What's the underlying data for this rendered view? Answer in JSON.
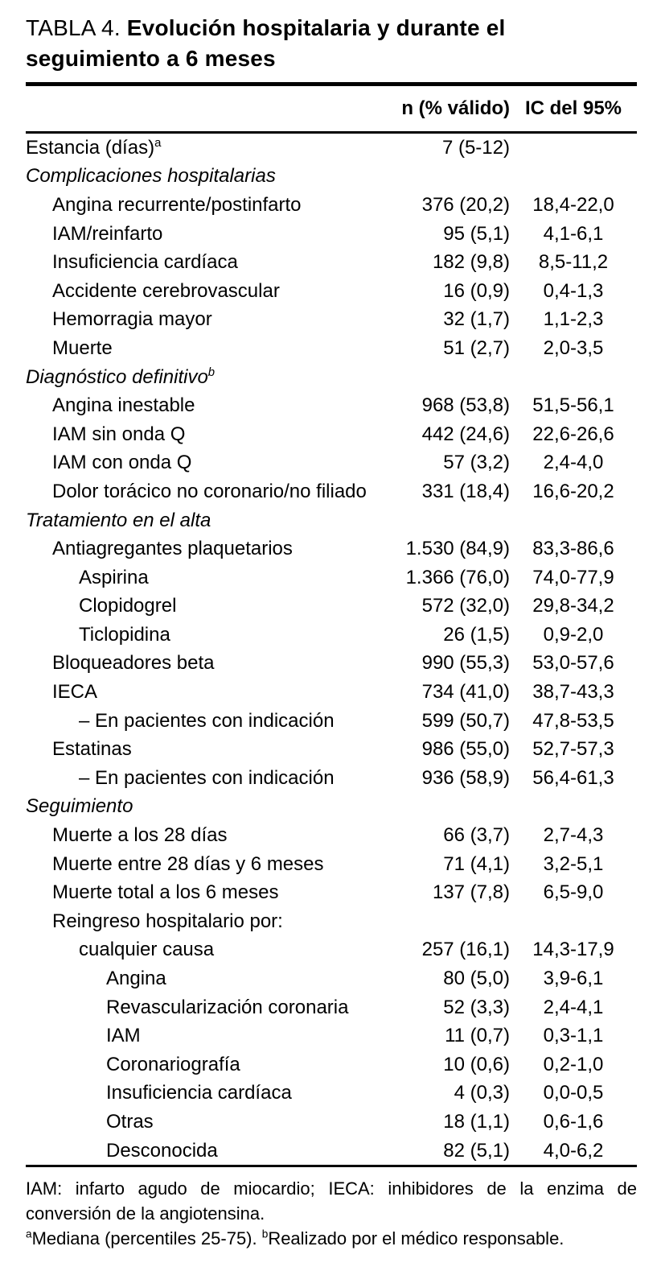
{
  "page": {
    "background": "#ffffff",
    "text_color": "#000000",
    "rule_color": "#000000"
  },
  "title": {
    "label": "TABLA 4.",
    "bold_text": "Evolución hospitalaria y durante el seguimiento a 6 meses"
  },
  "table": {
    "columns": {
      "n": "n (% válido)",
      "ic": "IC del 95%"
    },
    "rows": [
      {
        "label": "Estancia (días)",
        "sup": "a",
        "indent": 0,
        "italic": false,
        "n": "7 (5-12)",
        "ic": ""
      },
      {
        "label": "Complicaciones hospitalarias",
        "indent": 0,
        "italic": true,
        "n": "",
        "ic": ""
      },
      {
        "label": "Angina recurrente/postinfarto",
        "indent": 1,
        "italic": false,
        "n": "376 (20,2)",
        "ic": "18,4-22,0"
      },
      {
        "label": "IAM/reinfarto",
        "indent": 1,
        "italic": false,
        "n": "95 (5,1)",
        "ic": "4,1-6,1"
      },
      {
        "label": "Insuficiencia cardíaca",
        "indent": 1,
        "italic": false,
        "n": "182 (9,8)",
        "ic": "8,5-11,2"
      },
      {
        "label": "Accidente cerebrovascular",
        "indent": 1,
        "italic": false,
        "n": "16 (0,9)",
        "ic": "0,4-1,3"
      },
      {
        "label": "Hemorragia mayor",
        "indent": 1,
        "italic": false,
        "n": "32 (1,7)",
        "ic": "1,1-2,3"
      },
      {
        "label": "Muerte",
        "indent": 1,
        "italic": false,
        "n": "51 (2,7)",
        "ic": "2,0-3,5"
      },
      {
        "label": "Diagnóstico definitivo",
        "sup": "b",
        "indent": 0,
        "italic": true,
        "n": "",
        "ic": ""
      },
      {
        "label": "Angina inestable",
        "indent": 1,
        "italic": false,
        "n": "968 (53,8)",
        "ic": "51,5-56,1"
      },
      {
        "label": "IAM sin onda Q",
        "indent": 1,
        "italic": false,
        "n": "442 (24,6)",
        "ic": "22,6-26,6"
      },
      {
        "label": "IAM con onda Q",
        "indent": 1,
        "italic": false,
        "n": "57 (3,2)",
        "ic": "2,4-4,0"
      },
      {
        "label": "Dolor torácico no coronario/no filiado",
        "indent": 1,
        "italic": false,
        "n": "331 (18,4)",
        "ic": "16,6-20,2"
      },
      {
        "label": "Tratamiento en el alta",
        "indent": 0,
        "italic": true,
        "n": "",
        "ic": ""
      },
      {
        "label": "Antiagregantes plaquetarios",
        "indent": 1,
        "italic": false,
        "n": "1.530 (84,9)",
        "ic": "83,3-86,6"
      },
      {
        "label": "Aspirina",
        "indent": 2,
        "italic": false,
        "n": "1.366 (76,0)",
        "ic": "74,0-77,9"
      },
      {
        "label": "Clopidogrel",
        "indent": 2,
        "italic": false,
        "n": "572 (32,0)",
        "ic": "29,8-34,2"
      },
      {
        "label": "Ticlopidina",
        "indent": 2,
        "italic": false,
        "n": "26 (1,5)",
        "ic": "0,9-2,0"
      },
      {
        "label": "Bloqueadores beta",
        "indent": 1,
        "italic": false,
        "n": "990 (55,3)",
        "ic": "53,0-57,6"
      },
      {
        "label": "IECA",
        "indent": 1,
        "italic": false,
        "n": "734 (41,0)",
        "ic": "38,7-43,3"
      },
      {
        "label": "– En pacientes con indicación",
        "indent": 2,
        "italic": false,
        "n": "599 (50,7)",
        "ic": "47,8-53,5"
      },
      {
        "label": "Estatinas",
        "indent": 1,
        "italic": false,
        "n": "986 (55,0)",
        "ic": "52,7-57,3"
      },
      {
        "label": "– En pacientes con indicación",
        "indent": 2,
        "italic": false,
        "n": "936 (58,9)",
        "ic": "56,4-61,3"
      },
      {
        "label": "Seguimiento",
        "indent": 0,
        "italic": true,
        "n": "",
        "ic": ""
      },
      {
        "label": "Muerte a los 28 días",
        "indent": 1,
        "italic": false,
        "n": "66 (3,7)",
        "ic": "2,7-4,3"
      },
      {
        "label": "Muerte entre 28 días y 6 meses",
        "indent": 1,
        "italic": false,
        "n": "71 (4,1)",
        "ic": "3,2-5,1"
      },
      {
        "label": "Muerte total a los 6 meses",
        "indent": 1,
        "italic": false,
        "n": "137 (7,8)",
        "ic": "6,5-9,0"
      },
      {
        "label": "Reingreso hospitalario por:",
        "indent": 1,
        "italic": false,
        "n": "",
        "ic": ""
      },
      {
        "label": "cualquier causa",
        "indent": 2,
        "italic": false,
        "n": "257 (16,1)",
        "ic": "14,3-17,9"
      },
      {
        "label": "Angina",
        "indent": 3,
        "italic": false,
        "n": "80 (5,0)",
        "ic": "3,9-6,1"
      },
      {
        "label": "Revascularización coronaria",
        "indent": 3,
        "italic": false,
        "n": "52 (3,3)",
        "ic": "2,4-4,1"
      },
      {
        "label": "IAM",
        "indent": 3,
        "italic": false,
        "n": "11 (0,7)",
        "ic": "0,3-1,1"
      },
      {
        "label": "Coronariografía",
        "indent": 3,
        "italic": false,
        "n": "10 (0,6)",
        "ic": "0,2-1,0"
      },
      {
        "label": "Insuficiencia cardíaca",
        "indent": 3,
        "italic": false,
        "n": "4 (0,3)",
        "ic": "0,0-0,5"
      },
      {
        "label": "Otras",
        "indent": 3,
        "italic": false,
        "n": "18 (1,1)",
        "ic": "0,6-1,6"
      },
      {
        "label": "Desconocida",
        "indent": 3,
        "italic": false,
        "n": "82 (5,1)",
        "ic": "4,0-6,2"
      }
    ]
  },
  "footnotes": {
    "abbreviations": "IAM: infarto agudo de miocardio; IECA: inhibidores de la enzima de conversión de la angiotensina.",
    "markers": [
      {
        "sup": "a",
        "text": "Mediana (percentiles 25-75). "
      },
      {
        "sup": "b",
        "text": "Realizado por el médico responsable."
      }
    ]
  }
}
